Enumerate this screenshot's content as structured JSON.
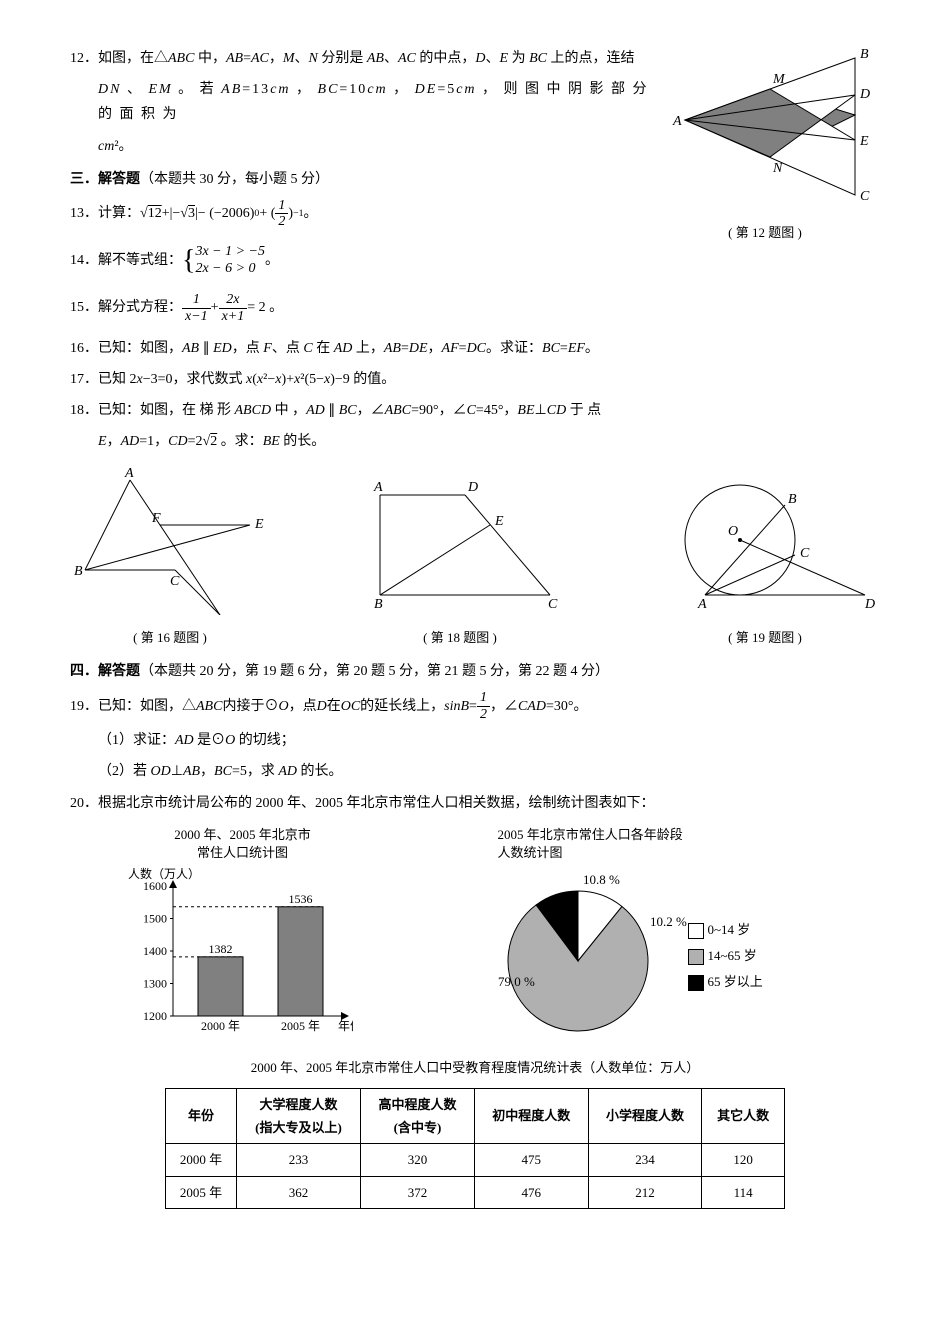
{
  "q12": {
    "prefix": "12．如图，在△",
    "abc": "ABC",
    "t1": " 中，",
    "ab": "AB",
    "eq1": "=",
    "ac": "AC",
    "t2": "，",
    "m": "M",
    "sep": "、",
    "nl": "N",
    "t3": " 分别是 ",
    "ab2": "AB",
    "sep2": "、",
    "ac2": "AC",
    "t4": " 的中点，",
    "d": "D",
    "sep3": "、",
    "e": "E",
    "t5": " 为 ",
    "bc": "BC",
    "t6": " 上的点，连结",
    "line2a": "DN",
    "l2s": " 、 ",
    "line2b": "EM",
    "l2t1": " 。 若 ",
    "ab3": "AB",
    "l2eq": "=13",
    "cm": "cm",
    "l2t2": " ， ",
    "bc2": "BC",
    "l2eq2": "=10",
    "cm2": "cm",
    "l2t3": " ， ",
    "de": "DE",
    "l2eq3": "=5",
    "cm3": "cm",
    "l2t4": " ， 则 图 中 阴 影 部 分 的 面 积 为",
    "line3a": "cm",
    "line3b": "²。",
    "fig_caption": "( 第 12 题图 )",
    "labels": {
      "A": "A",
      "B": "B",
      "C": "C",
      "D": "D",
      "E": "E",
      "M": "M",
      "N": "N"
    }
  },
  "sec3": {
    "label": "三．解答题",
    "note": "（本题共 30 分，每小题 5 分）"
  },
  "q13": {
    "prefix": "13．计算：",
    "sqrt12": "12",
    "plus": " + ",
    "abs_l": "|−",
    "sqrt3": "3",
    "abs_r": "|",
    "minus": " − (−2006)",
    "exp0": "0",
    "plus2": " + (",
    "half_n": "1",
    "half_d": "2",
    "close": ")",
    "expn1": "−1",
    "end": " 。"
  },
  "q14": {
    "prefix": "14．解不等式组：",
    "l1": "3x − 1 > −5",
    "l2": "2x − 6 > 0",
    "end": " 。"
  },
  "q15": {
    "prefix": "15．解分式方程：",
    "n1": "1",
    "d1": "x−1",
    "plus": " + ",
    "n2": "2x",
    "d2": "x+1",
    "eq": " = 2 。"
  },
  "q16": {
    "prefix": "16．已知：如图，",
    "ab": "AB",
    "par": " ∥ ",
    "ed": "ED",
    "t1": "，点 ",
    "f": "F",
    "t2": "、点 ",
    "c": "C",
    "t3": " 在 ",
    "ad": "AD",
    "t4": " 上，",
    "ab2": "AB",
    "eq": "=",
    "de": "DE",
    "t5": "，",
    "af": "AF",
    "eq2": "=",
    "dc": "DC",
    "t6": "。求证：",
    "bc": "BC",
    "eq3": "=",
    "ef": "EF",
    "t7": "。",
    "caption": "( 第 16 题图 )",
    "labels": {
      "A": "A",
      "B": "B",
      "C": "C",
      "D": "D",
      "E": "E",
      "F": "F"
    }
  },
  "q17": {
    "prefix": "17．已知 2",
    "x": "x",
    "t1": "−3=0，求代数式 ",
    "x2": "x",
    "t2": "(",
    "x3": "x",
    "sq": "²",
    "t3": "−",
    "x4": "x",
    "t4": ")+",
    "x5": "x",
    "sq2": "²",
    "t5": "(5−",
    "x6": "x",
    "t6": ")−9 的值。"
  },
  "q18": {
    "prefix": "18．已知：如图，在 梯 形 ",
    "abcd": "ABCD",
    "t1": " 中 ，",
    "ad": "AD",
    "par": " ∥ ",
    "bc": "BC",
    "t2": "，∠",
    "abc2": "ABC",
    "t3": "=90°，∠",
    "c": "C",
    "t4": "=45°，",
    "be": "BE",
    "perp": "⊥",
    "cd": "CD",
    "t5": " 于 点",
    "line2a": "E",
    "l2t1": "，",
    "ad2": "AD",
    "l2eq": "=1，",
    "cd2": "CD",
    "l2eq2": "=2",
    "sqrt2": "2",
    "l2t2": " 。求：",
    "be2": "BE",
    "l2t3": " 的长。",
    "caption": "( 第 18 题图 )",
    "labels": {
      "A": "A",
      "B": "B",
      "C": "C",
      "D": "D",
      "E": "E"
    }
  },
  "q19fig": {
    "caption": "( 第 19 题图 )",
    "labels": {
      "A": "A",
      "B": "B",
      "C": "C",
      "D": "D",
      "O": "O"
    }
  },
  "sec4": {
    "label": "四．解答题",
    "note": "（本题共 20 分，第 19 题 6 分，第 20 题 5 分，第 21 题 5 分，第 22 题 4 分）"
  },
  "q19": {
    "prefix": "19．已知：如图，△",
    "abc": "ABC",
    "t1": " 内接于⊙",
    "o": "O",
    "t2": "，点 ",
    "d": "D",
    "t3": " 在 ",
    "oc": "OC",
    "t4": " 的延长线上，",
    "sinb": "sinB",
    "t5": "=",
    "half_n": "1",
    "half_d": "2",
    "t6": "，∠",
    "cad": "CAD",
    "t7": "=30°。",
    "p1": "（1）求证：",
    "ad": "AD",
    "p1b": " 是⊙",
    "o2": "O",
    "p1c": " 的切线；",
    "p2": "（2）若 ",
    "od": "OD",
    "perp": "⊥",
    "ab": "AB",
    "p2b": "，",
    "bc": "BC",
    "p2c": "=5，求 ",
    "ad2": "AD",
    "p2d": " 的长。"
  },
  "q20": {
    "text": "20．根据北京市统计局公布的 2000 年、2005 年北京市常住人口相关数据，绘制统计图表如下："
  },
  "bar": {
    "title1": "2000 年、2005 年北京市",
    "title2": "常住人口统计图",
    "ylabel": "人数（万人）",
    "xlabel": "年份",
    "categories": [
      "2000 年",
      "2005 年"
    ],
    "values": [
      1382,
      1536
    ],
    "value_labels": [
      "1382",
      "1536"
    ],
    "yticks": [
      1200,
      1300,
      1400,
      1500,
      1600
    ],
    "ytick_labels": [
      "1200",
      "1300",
      "1400",
      "1500",
      "1600"
    ],
    "bar_color": "#808080",
    "bg": "#ffffff",
    "axis_color": "#000000",
    "yrange": [
      1200,
      1600
    ]
  },
  "pie": {
    "title1": "2005 年北京市常住人口各年龄段",
    "title2": "人数统计图",
    "slices": [
      {
        "label": "0~14 岁",
        "pct": 10.8,
        "color": "#ffffff",
        "start": -90,
        "label_text": "10.8 %"
      },
      {
        "label": "14~65 岁",
        "pct": 79.0,
        "color": "#b0b0b0",
        "start": -51.12,
        "label_text": "79.0 %"
      },
      {
        "label": "65 岁以上",
        "pct": 10.2,
        "color": "#000000",
        "start": 233.28,
        "label_text": "10.2 %"
      }
    ],
    "legend": [
      {
        "label": "0~14 岁",
        "color": "#ffffff"
      },
      {
        "label": "14~65 岁",
        "color": "#b0b0b0"
      },
      {
        "label": "65 岁以上",
        "color": "#000000"
      }
    ]
  },
  "table": {
    "caption": "2000 年、2005 年北京市常住人口中受教育程度情况统计表（人数单位：万人）",
    "headers": [
      "年份",
      "大学程度人数\n(指大专及以上)",
      "高中程度人数\n(含中专)",
      "初中程度人数",
      "小学程度人数",
      "其它人数"
    ],
    "rows": [
      [
        "2000 年",
        "233",
        "320",
        "475",
        "234",
        "120"
      ],
      [
        "2005 年",
        "362",
        "372",
        "476",
        "212",
        "114"
      ]
    ]
  }
}
